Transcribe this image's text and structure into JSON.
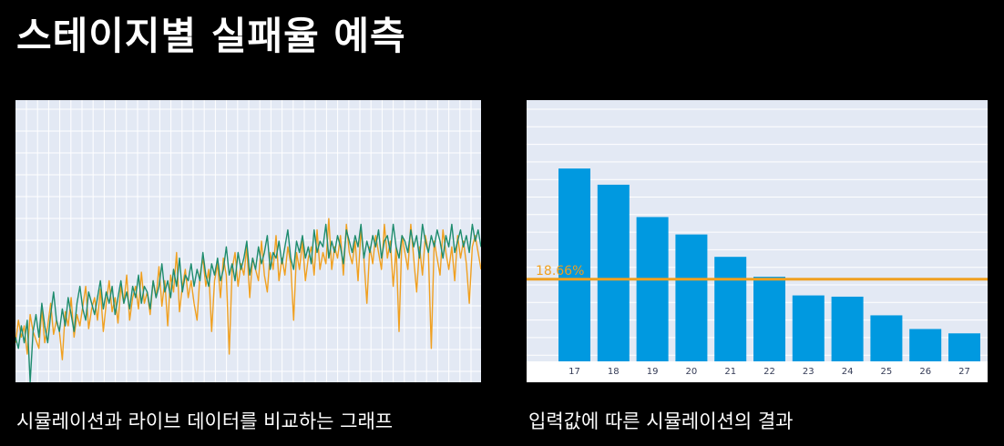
{
  "page": {
    "title": "스테이지별 실패율 예측",
    "background": "#000000"
  },
  "charts": [
    {
      "caption": "시뮬레이션과 라이브 데이터를 비교하는 그래프",
      "chart_data": {
        "type": "line",
        "title": "",
        "xlabel": "",
        "ylabel": "",
        "ylim": [
          0,
          100
        ],
        "grid": true,
        "background": "#e3e9f4",
        "series": [
          {
            "color": "#f0a020",
            "values": [
              14,
              22,
              16,
              20,
              10,
              24,
              18,
              15,
              12,
              26,
              14,
              20,
              28,
              17,
              22,
              18,
              8,
              25,
              20,
              30,
              16,
              24,
              20,
              27,
              34,
              19,
              26,
              30,
              22,
              33,
              18,
              28,
              36,
              25,
              30,
              21,
              34,
              28,
              38,
              22,
              30,
              34,
              26,
              39,
              28,
              32,
              24,
              36,
              30,
              41,
              27,
              36,
              20,
              38,
              32,
              46,
              25,
              34,
              40,
              30,
              36,
              28,
              22,
              38,
              44,
              34,
              40,
              18,
              36,
              42,
              30,
              44,
              38,
              10,
              40,
              46,
              34,
              42,
              38,
              48,
              30,
              44,
              40,
              36,
              50,
              38,
              32,
              46,
              40,
              52,
              36,
              44,
              38,
              48,
              42,
              22,
              46,
              40,
              50,
              36,
              44,
              48,
              38,
              54,
              40,
              46,
              42,
              58,
              40,
              48,
              44,
              52,
              38,
              56,
              46,
              42,
              50,
              36,
              54,
              44,
              28,
              48,
              42,
              52,
              46,
              40,
              56,
              44,
              50,
              34,
              48,
              18,
              52,
              46,
              40,
              56,
              44,
              32,
              48,
              38,
              52,
              46,
              12,
              50,
              44,
              38,
              54,
              46,
              40,
              48,
              36,
              52,
              44,
              50,
              42,
              28,
              48,
              52,
              46,
              40
            ]
          },
          {
            "color": "#1e8c6e",
            "values": [
              16,
              12,
              20,
              14,
              22,
              0,
              18,
              24,
              16,
              28,
              20,
              14,
              24,
              32,
              22,
              18,
              26,
              20,
              30,
              24,
              18,
              28,
              34,
              26,
              22,
              32,
              28,
              24,
              30,
              36,
              26,
              32,
              28,
              34,
              24,
              30,
              36,
              28,
              32,
              26,
              34,
              30,
              38,
              28,
              34,
              32,
              26,
              36,
              30,
              34,
              42,
              32,
              36,
              30,
              40,
              34,
              44,
              32,
              38,
              36,
              42,
              34,
              40,
              36,
              46,
              38,
              34,
              42,
              38,
              44,
              36,
              40,
              48,
              38,
              42,
              36,
              46,
              40,
              44,
              50,
              38,
              44,
              40,
              48,
              42,
              46,
              52,
              40,
              46,
              44,
              50,
              42,
              48,
              54,
              44,
              40,
              50,
              46,
              52,
              44,
              48,
              42,
              54,
              46,
              50,
              48,
              56,
              44,
              50,
              46,
              52,
              48,
              42,
              54,
              50,
              46,
              52,
              48,
              56,
              44,
              50,
              46,
              52,
              48,
              54,
              44,
              50,
              52,
              46,
              56,
              48,
              44,
              52,
              50,
              46,
              54,
              48,
              52,
              44,
              56,
              50,
              46,
              52,
              48,
              54,
              50,
              44,
              52,
              48,
              56,
              46,
              50,
              54,
              48,
              52,
              46,
              56,
              50,
              54,
              48
            ]
          }
        ]
      }
    },
    {
      "caption": "입력값에 따른 시뮬레이션의 결과",
      "chart_data": {
        "type": "bar",
        "title": "",
        "xlabel": "",
        "ylabel": "",
        "categories": [
          "17",
          "18",
          "19",
          "20",
          "21",
          "22",
          "23",
          "24",
          "25",
          "26",
          "27"
        ],
        "values": [
          31.0,
          28.4,
          23.2,
          20.4,
          16.8,
          13.6,
          10.6,
          10.4,
          7.4,
          5.2,
          4.5
        ],
        "ylim": [
          0,
          42
        ],
        "grid": true,
        "bar_color": "#0099e0",
        "background": "#e3e9f4",
        "reference_line": {
          "value": 13.2,
          "label": "18.66%",
          "color": "#f0a020"
        }
      }
    }
  ]
}
